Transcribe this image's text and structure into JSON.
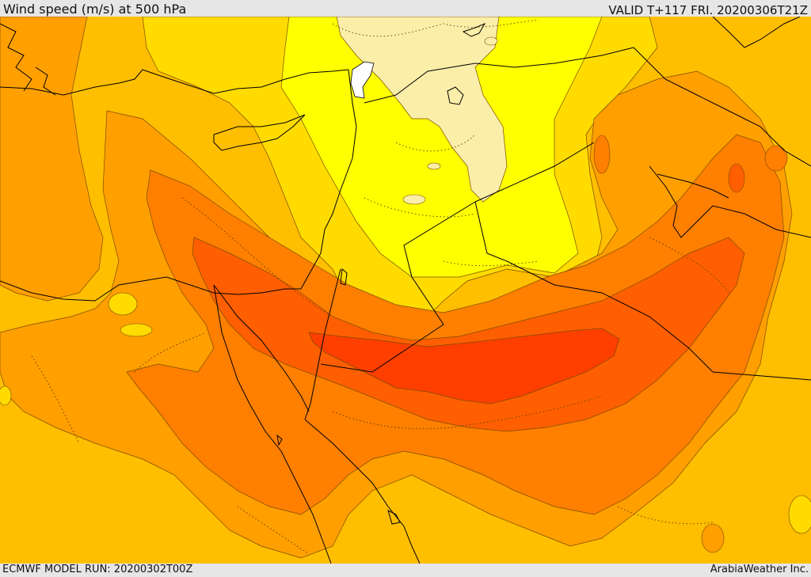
{
  "header": {
    "title": "Wind speed (m/s) at 500 hPa",
    "valid_time": "VALID T+117 FRI. 20200306T21Z"
  },
  "footer": {
    "model_run": "ECMWF MODEL RUN: 20200302T00Z",
    "credit": "ArabiaWeather Inc."
  },
  "colors": {
    "band_lt_10": "#fbeea9",
    "band_10_15": "#ffff00",
    "band_15_20": "#ffdb00",
    "band_20_25": "#ffbe00",
    "band_25_30": "#ff9f00",
    "band_30_35": "#ff7f00",
    "band_35_40": "#ff5f00",
    "band_40_45": "#ff3f00",
    "ice_land": "#ffffff",
    "coastline": "#000000"
  }
}
